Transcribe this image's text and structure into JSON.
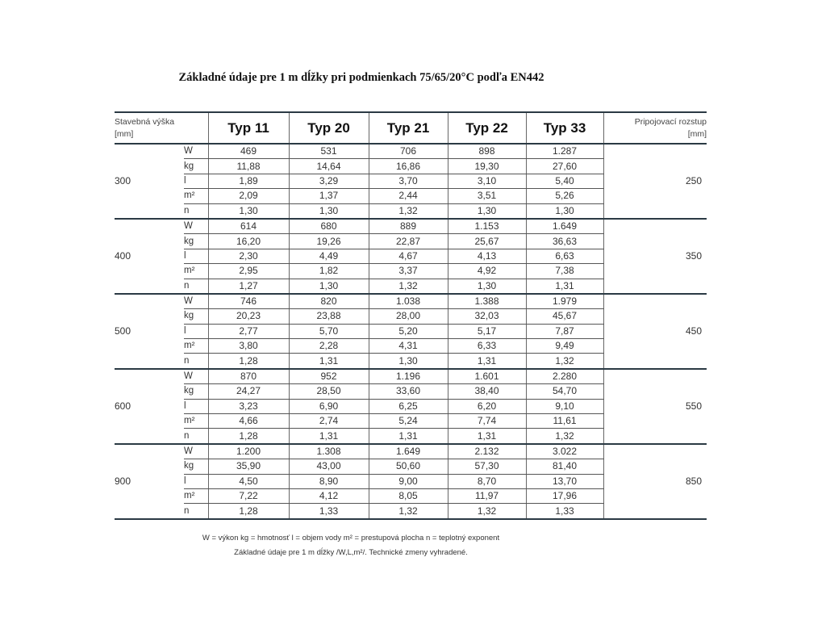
{
  "title": "Základné údaje pre 1 m dĺžky pri podmienkach 75/65/20°C podľa EN442",
  "header": {
    "height_label_line1": "Stavebná výška",
    "height_label_line2": "[mm]",
    "types": [
      "Typ 11",
      "Typ 20",
      "Typ 21",
      "Typ 22",
      "Typ 33"
    ],
    "spacing_label_line1": "Pripojovací rozstup",
    "spacing_label_line2": "[mm]"
  },
  "units": [
    "W",
    "kg",
    "l",
    "m²",
    "n"
  ],
  "groups": [
    {
      "height": "300",
      "spacing": "250",
      "rows": [
        [
          "469",
          "531",
          "706",
          "898",
          "1.287"
        ],
        [
          "11,88",
          "14,64",
          "16,86",
          "19,30",
          "27,60"
        ],
        [
          "1,89",
          "3,29",
          "3,70",
          "3,10",
          "5,40"
        ],
        [
          "2,09",
          "1,37",
          "2,44",
          "3,51",
          "5,26"
        ],
        [
          "1,30",
          "1,30",
          "1,32",
          "1,30",
          "1,30"
        ]
      ]
    },
    {
      "height": "400",
      "spacing": "350",
      "rows": [
        [
          "614",
          "680",
          "889",
          "1.153",
          "1.649"
        ],
        [
          "16,20",
          "19,26",
          "22,87",
          "25,67",
          "36,63"
        ],
        [
          "2,30",
          "4,49",
          "4,67",
          "4,13",
          "6,63"
        ],
        [
          "2,95",
          "1,82",
          "3,37",
          "4,92",
          "7,38"
        ],
        [
          "1,27",
          "1,30",
          "1,32",
          "1,30",
          "1,31"
        ]
      ]
    },
    {
      "height": "500",
      "spacing": "450",
      "rows": [
        [
          "746",
          "820",
          "1.038",
          "1.388",
          "1.979"
        ],
        [
          "20,23",
          "23,88",
          "28,00",
          "32,03",
          "45,67"
        ],
        [
          "2,77",
          "5,70",
          "5,20",
          "5,17",
          "7,87"
        ],
        [
          "3,80",
          "2,28",
          "4,31",
          "6,33",
          "9,49"
        ],
        [
          "1,28",
          "1,31",
          "1,30",
          "1,31",
          "1,32"
        ]
      ]
    },
    {
      "height": "600",
      "spacing": "550",
      "rows": [
        [
          "870",
          "952",
          "1.196",
          "1.601",
          "2.280"
        ],
        [
          "24,27",
          "28,50",
          "33,60",
          "38,40",
          "54,70"
        ],
        [
          "3,23",
          "6,90",
          "6,25",
          "6,20",
          "9,10"
        ],
        [
          "4,66",
          "2,74",
          "5,24",
          "7,74",
          "11,61"
        ],
        [
          "1,28",
          "1,31",
          "1,31",
          "1,31",
          "1,32"
        ]
      ]
    },
    {
      "height": "900",
      "spacing": "850",
      "rows": [
        [
          "1.200",
          "1.308",
          "1.649",
          "2.132",
          "3.022"
        ],
        [
          "35,90",
          "43,00",
          "50,60",
          "57,30",
          "81,40"
        ],
        [
          "4,50",
          "8,90",
          "9,00",
          "8,70",
          "13,70"
        ],
        [
          "7,22",
          "4,12",
          "8,05",
          "11,97",
          "17,96"
        ],
        [
          "1,28",
          "1,33",
          "1,32",
          "1,32",
          "1,33"
        ]
      ]
    }
  ],
  "footnote": {
    "line1": "W = výkon  kg = hmotnosť  l = objem vody   m² = prestupová plocha   n = teplotný exponent",
    "line2": "Základné údaje pre 1 m dĺžky /W,L,m²/. Technické zmeny vyhradené."
  }
}
